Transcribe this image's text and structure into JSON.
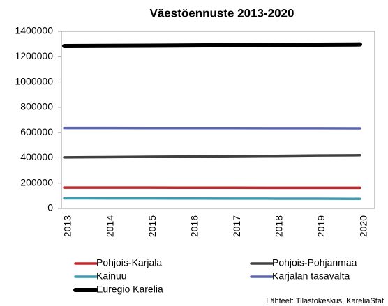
{
  "chart_data": {
    "type": "line",
    "title": "Väestöennuste 2013-2020",
    "categories": [
      "2013",
      "2014",
      "2015",
      "2016",
      "2017",
      "2018",
      "2019",
      "2020"
    ],
    "series": [
      {
        "name": "Pohjois-Karjala",
        "color": "#c0282e",
        "values": [
          165000,
          165000,
          164500,
          164000,
          164000,
          163500,
          163500,
          163000
        ]
      },
      {
        "name": "Pohjois-Pohjanmaa",
        "color": "#404040",
        "values": [
          403000,
          405000,
          408000,
          410000,
          413000,
          415000,
          418000,
          420000
        ]
      },
      {
        "name": "Kainuu",
        "color": "#3a9cb0",
        "values": [
          80000,
          79500,
          79000,
          78500,
          78000,
          77500,
          77000,
          76000
        ]
      },
      {
        "name": "Karjalan tasavalta",
        "color": "#5a66b0",
        "values": [
          636000,
          636000,
          635500,
          635000,
          635000,
          634500,
          634500,
          634000
        ]
      },
      {
        "name": "Euregio Karelia",
        "color": "#000000",
        "values": [
          1284000,
          1285500,
          1287000,
          1289000,
          1291000,
          1293000,
          1295500,
          1297000
        ]
      }
    ],
    "ylim": [
      0,
      1400000
    ],
    "yticks": [
      0,
      200000,
      400000,
      600000,
      800000,
      1000000,
      1200000,
      1400000
    ],
    "grid": false,
    "source": "Lähteet: Tilastokeskus, KareliaStat"
  }
}
